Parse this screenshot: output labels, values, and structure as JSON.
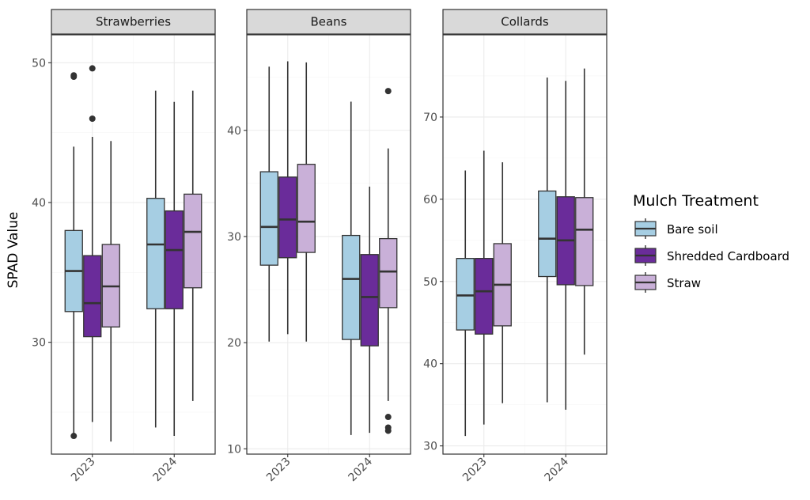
{
  "chart_data": {
    "type": "boxplot",
    "ylabel": "SPAD Value",
    "xlabel": "",
    "legend_title": "Mulch Treatment",
    "legend_position": "right",
    "grid": true,
    "x_categories": [
      "2023",
      "2024"
    ],
    "treatments": [
      {
        "name": "Bare soil",
        "color": "#a6cee3"
      },
      {
        "name": "Shredded Cardboard",
        "color": "#6a2c9a"
      },
      {
        "name": "Straw",
        "color": "#c9b0d8"
      }
    ],
    "colors": {
      "strip_bg": "#d9d9d9",
      "panel_border": "#333333",
      "grid_major": "#ebebeb",
      "grid_minor": "#f5f5f5",
      "box_outline": "#333333",
      "outlier": "#333333"
    },
    "panels": [
      {
        "title": "Strawberries",
        "ylim": [
          22,
          52
        ],
        "major_ticks": [
          30,
          40,
          50
        ],
        "minor_ticks": [
          25,
          35,
          45
        ],
        "boxes": [
          {
            "year": "2023",
            "treatment": "Bare soil",
            "min": 23.3,
            "q1": 32.2,
            "median": 35.1,
            "q3": 38.0,
            "max": 44.0,
            "outliers": [
              49.0,
              49.1,
              23.3
            ]
          },
          {
            "year": "2023",
            "treatment": "Shredded Cardboard",
            "min": 24.3,
            "q1": 30.4,
            "median": 32.8,
            "q3": 36.2,
            "max": 44.7,
            "outliers": [
              46.0,
              49.6
            ]
          },
          {
            "year": "2023",
            "treatment": "Straw",
            "min": 22.9,
            "q1": 31.1,
            "median": 34.0,
            "q3": 37.0,
            "max": 44.4,
            "outliers": []
          },
          {
            "year": "2024",
            "treatment": "Bare soil",
            "min": 23.9,
            "q1": 32.4,
            "median": 37.0,
            "q3": 40.3,
            "max": 48.0,
            "outliers": []
          },
          {
            "year": "2024",
            "treatment": "Shredded Cardboard",
            "min": 23.3,
            "q1": 32.4,
            "median": 36.6,
            "q3": 39.4,
            "max": 47.2,
            "outliers": []
          },
          {
            "year": "2024",
            "treatment": "Straw",
            "min": 25.8,
            "q1": 33.9,
            "median": 37.9,
            "q3": 40.6,
            "max": 48.0,
            "outliers": []
          }
        ]
      },
      {
        "title": "Beans",
        "ylim": [
          9.5,
          49
        ],
        "major_ticks": [
          10,
          20,
          30,
          40
        ],
        "minor_ticks": [
          15,
          25,
          35,
          45
        ],
        "boxes": [
          {
            "year": "2023",
            "treatment": "Bare soil",
            "min": 20.1,
            "q1": 27.3,
            "median": 30.9,
            "q3": 36.1,
            "max": 46.0,
            "outliers": []
          },
          {
            "year": "2023",
            "treatment": "Shredded Cardboard",
            "min": 20.8,
            "q1": 28.0,
            "median": 31.6,
            "q3": 35.6,
            "max": 46.5,
            "outliers": []
          },
          {
            "year": "2023",
            "treatment": "Straw",
            "min": 20.1,
            "q1": 28.5,
            "median": 31.4,
            "q3": 36.8,
            "max": 46.4,
            "outliers": []
          },
          {
            "year": "2024",
            "treatment": "Bare soil",
            "min": 11.3,
            "q1": 20.3,
            "median": 26.0,
            "q3": 30.1,
            "max": 42.7,
            "outliers": []
          },
          {
            "year": "2024",
            "treatment": "Shredded Cardboard",
            "min": 11.5,
            "q1": 19.7,
            "median": 24.3,
            "q3": 28.3,
            "max": 34.7,
            "outliers": []
          },
          {
            "year": "2024",
            "treatment": "Straw",
            "min": 14.5,
            "q1": 23.3,
            "median": 26.7,
            "q3": 29.8,
            "max": 38.3,
            "outliers": [
              43.7,
              13.0,
              12.0,
              11.7
            ]
          }
        ]
      },
      {
        "title": "Collards",
        "ylim": [
          29,
          80
        ],
        "major_ticks": [
          30,
          40,
          50,
          60,
          70
        ],
        "minor_ticks": [
          35,
          45,
          55,
          65,
          75
        ],
        "boxes": [
          {
            "year": "2023",
            "treatment": "Bare soil",
            "min": 31.2,
            "q1": 44.1,
            "median": 48.3,
            "q3": 52.8,
            "max": 63.5,
            "outliers": []
          },
          {
            "year": "2023",
            "treatment": "Shredded Cardboard",
            "min": 32.6,
            "q1": 43.6,
            "median": 48.8,
            "q3": 52.8,
            "max": 65.9,
            "outliers": []
          },
          {
            "year": "2023",
            "treatment": "Straw",
            "min": 35.2,
            "q1": 44.6,
            "median": 49.6,
            "q3": 54.6,
            "max": 64.5,
            "outliers": []
          },
          {
            "year": "2024",
            "treatment": "Bare soil",
            "min": 35.3,
            "q1": 50.6,
            "median": 55.2,
            "q3": 61.0,
            "max": 74.8,
            "outliers": []
          },
          {
            "year": "2024",
            "treatment": "Shredded Cardboard",
            "min": 34.4,
            "q1": 49.6,
            "median": 55.0,
            "q3": 60.3,
            "max": 74.4,
            "outliers": []
          },
          {
            "year": "2024",
            "treatment": "Straw",
            "min": 41.1,
            "q1": 49.5,
            "median": 56.3,
            "q3": 60.2,
            "max": 75.9,
            "outliers": []
          }
        ]
      }
    ]
  }
}
